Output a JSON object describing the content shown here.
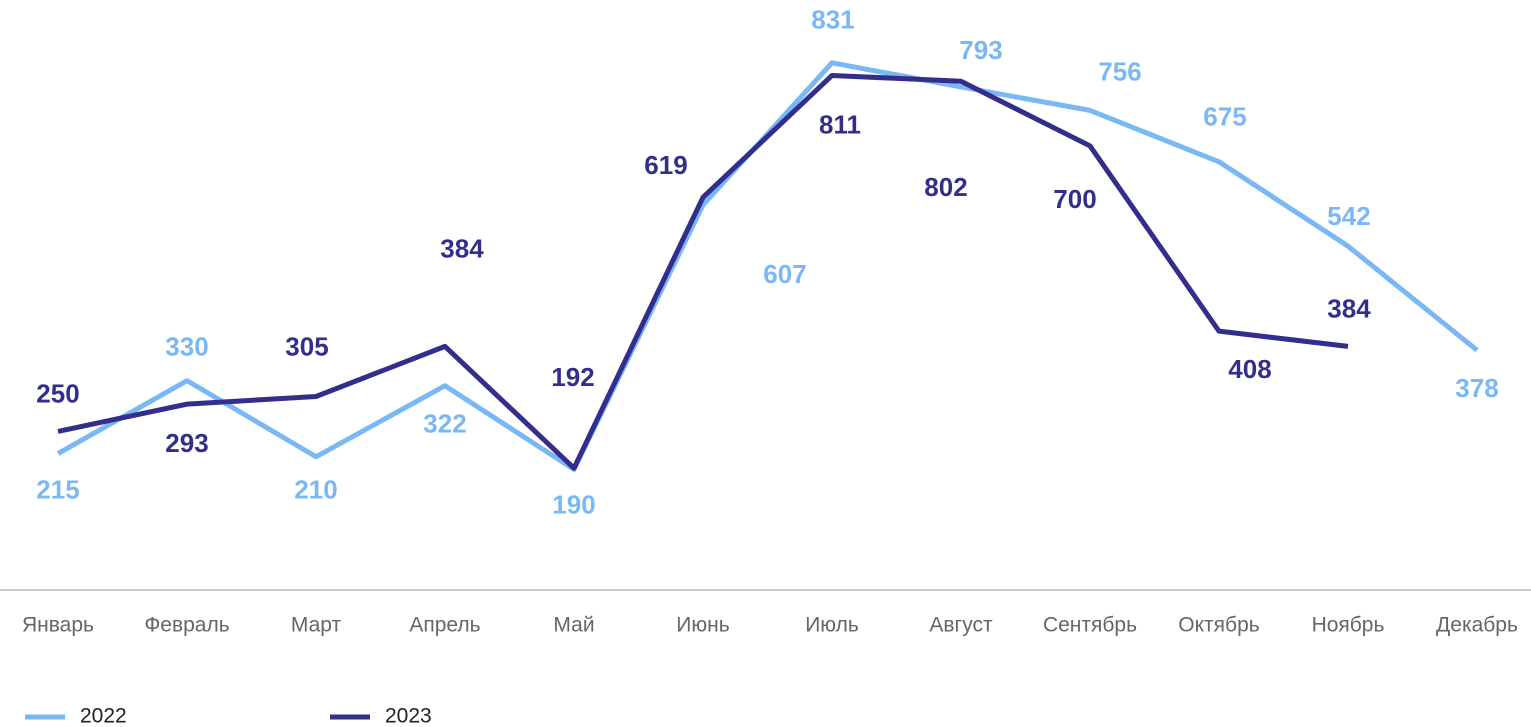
{
  "chart_data": {
    "type": "line",
    "categories": [
      "Январь",
      "Февраль",
      "Март",
      "Апрель",
      "Май",
      "Июнь",
      "Июль",
      "Август",
      "Сентябрь",
      "Октябрь",
      "Ноябрь",
      "Декабрь"
    ],
    "series": [
      {
        "name": "2022",
        "color": "#7ab8f5",
        "values": [
          215,
          330,
          210,
          322,
          190,
          607,
          831,
          793,
          756,
          675,
          542,
          378
        ]
      },
      {
        "name": "2023",
        "color": "#332e8c",
        "values": [
          250,
          293,
          305,
          384,
          192,
          619,
          811,
          802,
          700,
          408,
          384,
          null
        ]
      }
    ],
    "ylim": [
      0,
      930
    ],
    "grid": false,
    "legend": "bottom"
  }
}
